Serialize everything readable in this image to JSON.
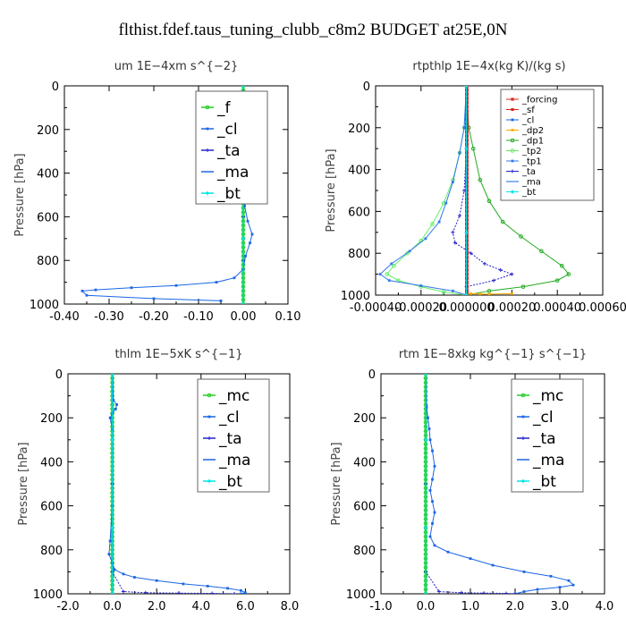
{
  "suptitle": "flthist.fdef.taus_tuning_clubb_c8m2  BUDGET at25E,0N",
  "colors": {
    "mc": "#22cc22",
    "f": "#22cc22",
    "cl": "#1a66e6",
    "ta": "#2222cc",
    "ma": "#1a66e6",
    "bt": "#00e6e6",
    "forcing": "#dd2222",
    "sf": "#dd2222",
    "dp2": "#ffaa00",
    "dp1": "#22aa22",
    "tp2": "#66ee66",
    "tp1": "#3377ee"
  },
  "chart_data": [
    {
      "id": "um",
      "type": "line",
      "title": "um   1E−4xm  s^{−2}",
      "ylabel": "Pressure [hPa]",
      "xlim": [
        -0.4,
        0.1
      ],
      "ylim": [
        1000,
        0
      ],
      "x_ticks": [
        -0.4,
        -0.3,
        -0.2,
        -0.1,
        0.0,
        0.1
      ],
      "x_tick_labels": [
        "-0.40",
        "-0.30",
        "-0.20",
        "-0.10",
        "0.00",
        "0.10"
      ],
      "y_ticks": [
        0,
        200,
        400,
        600,
        800,
        1000
      ],
      "y_tick_labels": [
        "0",
        "200",
        "400",
        "600",
        "800",
        "1000"
      ],
      "legend": {
        "position": "top-right",
        "size": "large",
        "entries": [
          "_f",
          "_cl",
          "_ta",
          "_ma",
          "_bt"
        ]
      },
      "series": [
        {
          "name": "_f",
          "key": "f",
          "x": [
            0,
            0,
            0,
            0,
            0,
            0,
            0,
            0,
            0,
            0,
            0,
            0
          ],
          "y": [
            0,
            100,
            200,
            300,
            400,
            500,
            600,
            700,
            800,
            900,
            950,
            1000
          ]
        },
        {
          "name": "_cl",
          "key": "cl",
          "x": [
            0,
            0.005,
            0.03,
            0.025,
            0.01,
            0.003,
            0,
            0.003,
            0.01,
            0.02,
            0.015,
            0.005,
            0,
            -0.02,
            -0.06,
            -0.15,
            -0.25,
            -0.33,
            -0.36,
            -0.35,
            -0.2,
            -0.05
          ],
          "y": [
            0,
            100,
            130,
            150,
            170,
            200,
            300,
            550,
            620,
            680,
            720,
            780,
            840,
            880,
            900,
            915,
            925,
            935,
            940,
            960,
            975,
            985
          ]
        },
        {
          "name": "_ta",
          "key": "ta",
          "x": [
            0,
            0,
            0,
            0,
            0,
            0
          ],
          "y": [
            0,
            200,
            400,
            600,
            800,
            1000
          ]
        },
        {
          "name": "_ma",
          "key": "ma",
          "x": [
            0,
            0,
            0,
            0
          ],
          "y": [
            0,
            300,
            700,
            1000
          ]
        },
        {
          "name": "_bt",
          "key": "bt",
          "x": [
            0,
            0,
            0,
            0
          ],
          "y": [
            0,
            300,
            700,
            1000
          ]
        }
      ]
    },
    {
      "id": "rtpthlp",
      "type": "line",
      "title": "rtpthlp   1E−4x(kg K)/(kg s)",
      "ylabel": "Pressure [hPa]",
      "xlim": [
        -0.0004,
        0.0006
      ],
      "ylim": [
        1000,
        0
      ],
      "x_ticks": [
        -0.0004,
        -0.0002,
        0.0,
        0.0002,
        0.0004,
        0.0006
      ],
      "x_tick_labels": [
        "-0.00040",
        "-0.00020",
        "0.000000",
        "0.00020",
        "0.00040",
        "0.00060"
      ],
      "y_ticks": [
        0,
        200,
        400,
        600,
        800,
        1000
      ],
      "y_tick_labels": [
        "0",
        "200",
        "400",
        "600",
        "800",
        "1000"
      ],
      "legend": {
        "position": "top-right",
        "size": "small",
        "entries": [
          "_forcing",
          "_sf",
          "_cl",
          "_dp2",
          "_dp1",
          "_tp2",
          "_tp1",
          "_ta",
          "_ma",
          "_bt"
        ]
      },
      "series": [
        {
          "name": "_dp1",
          "key": "dp1",
          "x": [
            0,
            1e-05,
            3e-05,
            6e-05,
            0.0001,
            0.00016,
            0.00024,
            0.00033,
            0.00042,
            0.00045,
            0.0004,
            0.00025,
            0.0001,
            0
          ],
          "y": [
            0,
            200,
            300,
            450,
            550,
            650,
            720,
            790,
            860,
            900,
            930,
            960,
            980,
            1000
          ]
        },
        {
          "name": "_tp2",
          "key": "tp2",
          "x": [
            0,
            -1e-05,
            -3e-05,
            -6e-05,
            -0.0001,
            -0.00015,
            -0.0002,
            -0.00026,
            -0.00032,
            -0.00035,
            -0.0003,
            -0.0002,
            -0.0001,
            0
          ],
          "y": [
            0,
            200,
            320,
            450,
            560,
            660,
            740,
            800,
            860,
            900,
            930,
            960,
            985,
            1000
          ]
        },
        {
          "name": "_tp1",
          "key": "tp1",
          "x": [
            0,
            -1e-05,
            -3e-05,
            -6e-05,
            -9e-05,
            -0.00012,
            -0.00018,
            -0.00025,
            -0.00033,
            -0.00038,
            -0.00034,
            -0.0002,
            -6e-05,
            0
          ],
          "y": [
            0,
            200,
            320,
            460,
            560,
            650,
            730,
            790,
            850,
            900,
            930,
            955,
            980,
            1000
          ]
        },
        {
          "name": "_ta",
          "key": "ta",
          "x": [
            0,
            0,
            -1e-05,
            -3e-05,
            -6e-05,
            -5e-05,
            2e-05,
            8e-05,
            0.00015,
            0.0002,
            0.00012,
            0
          ],
          "y": [
            0,
            300,
            500,
            620,
            700,
            750,
            800,
            850,
            880,
            900,
            930,
            960
          ]
        },
        {
          "name": "_dp2",
          "key": "dp2",
          "x": [
            0,
            2e-05,
            6e-05,
            0.0001,
            0.0002
          ],
          "y": [
            990,
            993,
            995,
            995,
            993
          ]
        },
        {
          "name": "_forcing",
          "key": "forcing",
          "x": [
            0,
            0,
            0,
            0,
            0,
            0,
            0,
            0,
            0,
            0,
            0,
            0
          ],
          "y": [
            0,
            100,
            200,
            300,
            400,
            500,
            600,
            700,
            800,
            900,
            950,
            1000
          ]
        },
        {
          "name": "_sf",
          "key": "sf",
          "x": [
            3e-06,
            3e-06,
            3e-06,
            3e-06,
            3e-06,
            3e-06,
            3e-06,
            3e-06,
            3e-06,
            3e-06,
            3e-06,
            3e-06
          ],
          "y": [
            0,
            100,
            200,
            300,
            400,
            500,
            600,
            700,
            800,
            900,
            950,
            1000
          ]
        },
        {
          "name": "_cl",
          "key": "cl",
          "x": [
            0,
            0,
            0,
            0
          ],
          "y": [
            0,
            300,
            700,
            1000
          ]
        },
        {
          "name": "_ma",
          "key": "ma",
          "x": [
            0,
            0,
            0,
            0
          ],
          "y": [
            0,
            300,
            700,
            1000
          ]
        },
        {
          "name": "_bt",
          "key": "bt",
          "x": [
            0,
            0,
            0,
            0
          ],
          "y": [
            0,
            300,
            700,
            1000
          ]
        }
      ]
    },
    {
      "id": "thlm",
      "type": "line",
      "title": "thlm   1E−5xK  s^{−1}",
      "ylabel": "Pressure [hPa]",
      "xlim": [
        -2.0,
        8.0
      ],
      "ylim": [
        1000,
        0
      ],
      "x_ticks": [
        -2,
        0,
        2,
        4,
        6,
        8
      ],
      "x_tick_labels": [
        "-2.0",
        "0.0",
        "2.0",
        "4.0",
        "6.0",
        "8.0"
      ],
      "y_ticks": [
        0,
        200,
        400,
        600,
        800,
        1000
      ],
      "y_tick_labels": [
        "0",
        "200",
        "400",
        "600",
        "800",
        "1000"
      ],
      "legend": {
        "position": "top-right",
        "size": "large",
        "entries": [
          "_mc",
          "_cl",
          "_ta",
          "_ma",
          "_bt"
        ]
      },
      "series": [
        {
          "name": "_mc",
          "key": "mc",
          "x": [
            0,
            0,
            0,
            0,
            0,
            0,
            0,
            0,
            0,
            0,
            0,
            0
          ],
          "y": [
            0,
            100,
            200,
            300,
            400,
            500,
            600,
            700,
            800,
            900,
            950,
            1000
          ]
        },
        {
          "name": "_cl",
          "key": "cl",
          "x": [
            0,
            0.05,
            0.2,
            0.15,
            0,
            -0.1,
            0,
            0,
            -0.1,
            -0.15,
            0,
            0.1,
            0.5,
            1.0,
            2.0,
            3.2,
            4.3,
            5.2,
            5.8,
            6.0,
            5.8
          ],
          "y": [
            0,
            120,
            140,
            160,
            180,
            200,
            250,
            600,
            760,
            820,
            860,
            890,
            910,
            925,
            940,
            955,
            965,
            975,
            985,
            995,
            1000
          ]
        },
        {
          "name": "_ta",
          "key": "ta",
          "x": [
            0,
            0,
            0,
            0.5,
            1.5,
            3.0,
            4.5,
            5.5
          ],
          "y": [
            0,
            500,
            900,
            990,
            995,
            997,
            998,
            1000
          ]
        },
        {
          "name": "_ma",
          "key": "ma",
          "x": [
            0,
            0,
            0,
            0
          ],
          "y": [
            0,
            300,
            700,
            1000
          ]
        },
        {
          "name": "_bt",
          "key": "bt",
          "x": [
            0,
            0,
            0,
            0
          ],
          "y": [
            0,
            300,
            700,
            1000
          ]
        }
      ]
    },
    {
      "id": "rtm",
      "type": "line",
      "title": "rtm   1E−8xkg  kg^{−1}  s^{−1}",
      "ylabel": "Pressure [hPa]",
      "xlim": [
        -1.0,
        4.0
      ],
      "ylim": [
        1000,
        0
      ],
      "x_ticks": [
        -1,
        0,
        1,
        2,
        3,
        4
      ],
      "x_tick_labels": [
        "-1.0",
        "0.0",
        "1.0",
        "2.0",
        "3.0",
        "4.0"
      ],
      "y_ticks": [
        0,
        200,
        400,
        600,
        800,
        1000
      ],
      "y_tick_labels": [
        "0",
        "200",
        "400",
        "600",
        "800",
        "1000"
      ],
      "legend": {
        "position": "top-right",
        "size": "large",
        "entries": [
          "_mc",
          "_cl",
          "_ta",
          "_ma",
          "_bt"
        ]
      },
      "series": [
        {
          "name": "_mc",
          "key": "mc",
          "x": [
            0,
            0,
            0,
            0,
            0,
            0,
            0,
            0,
            0,
            0,
            0,
            0
          ],
          "y": [
            0,
            100,
            200,
            300,
            400,
            500,
            600,
            700,
            800,
            900,
            950,
            1000
          ]
        },
        {
          "name": "_cl",
          "key": "cl",
          "x": [
            0,
            0.02,
            0.05,
            0.08,
            0.1,
            0.15,
            0.2,
            0.15,
            0.1,
            0.15,
            0.2,
            0.15,
            0.1,
            0.2,
            0.5,
            1.0,
            1.5,
            2.2,
            2.8,
            3.2,
            3.3,
            3.0,
            2.5,
            2.2,
            2.0
          ],
          "y": [
            0,
            150,
            200,
            250,
            300,
            350,
            420,
            480,
            530,
            580,
            630,
            680,
            740,
            780,
            810,
            840,
            870,
            900,
            920,
            940,
            960,
            970,
            980,
            990,
            1000
          ]
        },
        {
          "name": "_ta",
          "key": "ta",
          "x": [
            0,
            0,
            0,
            0.3,
            0.8,
            1.3,
            1.8,
            2.0
          ],
          "y": [
            0,
            500,
            900,
            990,
            995,
            997,
            998,
            1000
          ]
        },
        {
          "name": "_ma",
          "key": "ma",
          "x": [
            0,
            0,
            0,
            0
          ],
          "y": [
            0,
            300,
            700,
            1000
          ]
        },
        {
          "name": "_bt",
          "key": "bt",
          "x": [
            0,
            0,
            0,
            0
          ],
          "y": [
            0,
            300,
            700,
            1000
          ]
        }
      ]
    }
  ]
}
